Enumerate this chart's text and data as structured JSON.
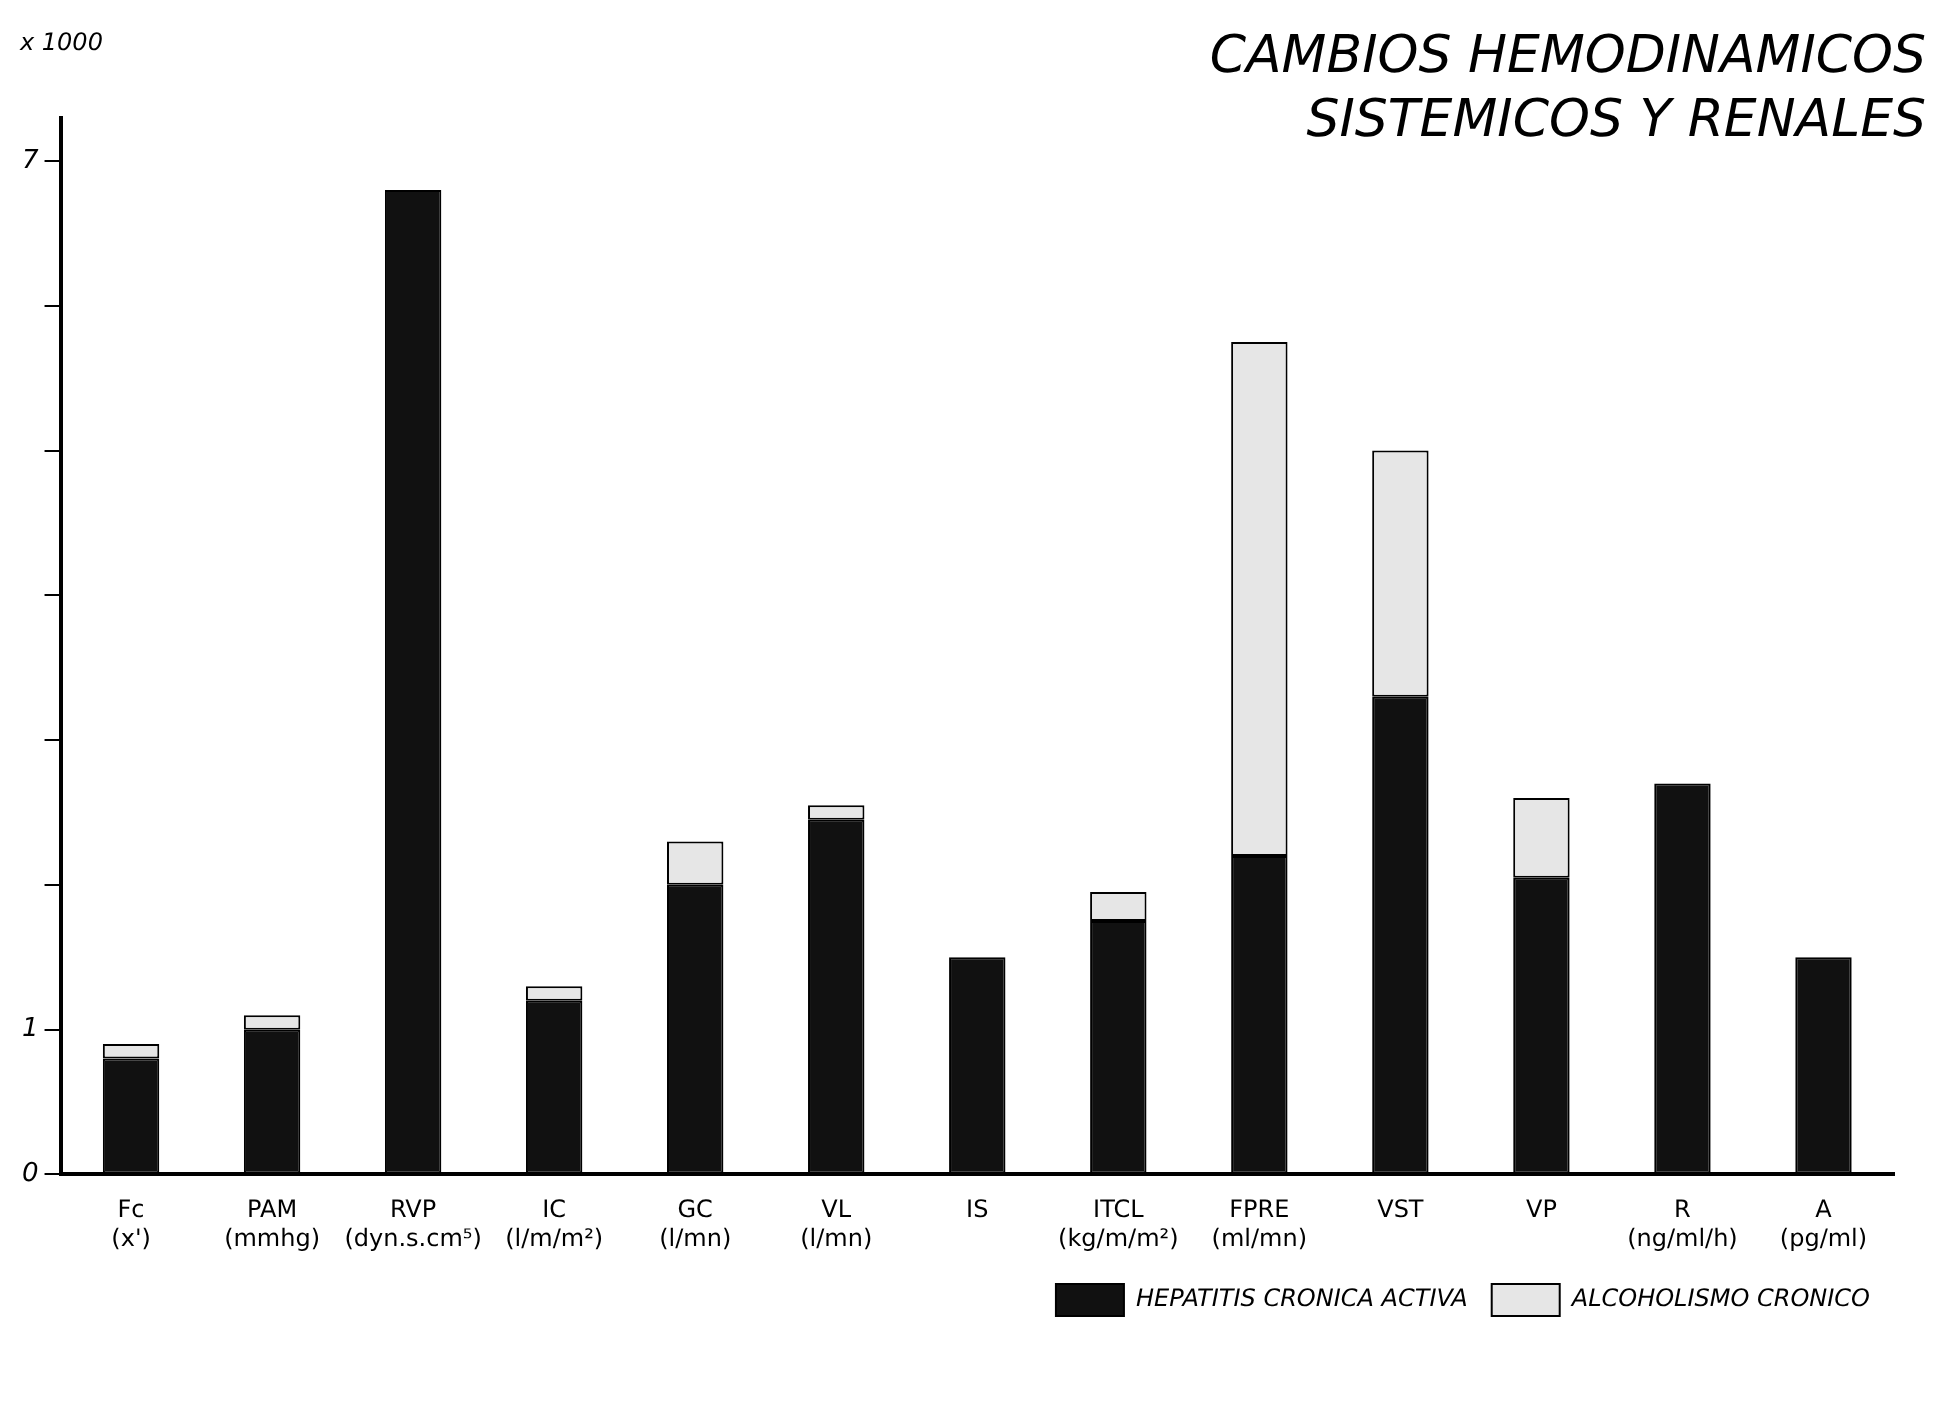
{
  "chart_data": {
    "type": "bar",
    "title": "CAMBIOS HEMODINAMICOS SISTEMICOS Y RENALES",
    "ylabel": "x 1000",
    "categories": [
      "Fc\n(x')",
      "PAM\n(mmhg)",
      "RVP\n(dyn.s.cm⁵)",
      "IC\n(l/m/m²)",
      "GC\n(l/mn)",
      "VL\n(l/mn)",
      "IS",
      "ITCL\n(kg/m/m²)",
      "FPRE\n(ml/mn)",
      "VST",
      "VP",
      "R\n(ng/ml/h)",
      "A\n(pg/ml)"
    ],
    "stacked": true,
    "series": [
      {
        "name": "HEPATITIS CRONICA ACTIVA",
        "color": "#111111",
        "values": [
          0.8,
          1.0,
          6.8,
          1.2,
          2.0,
          2.45,
          1.5,
          1.75,
          2.2,
          3.3,
          2.05,
          2.7,
          1.5
        ]
      },
      {
        "name": "ALCOHOLISMO CRONICO",
        "color": "#e6e6e6",
        "values": [
          0.1,
          0.1,
          null,
          0.1,
          0.3,
          0.1,
          null,
          0.2,
          3.55,
          1.7,
          0.55,
          null,
          null
        ]
      }
    ],
    "ylim": [
      0,
      7.3
    ],
    "yticks": [
      0,
      1,
      {
        "value": 2,
        "label": null
      },
      {
        "value": 3,
        "label": null
      },
      {
        "value": 4,
        "label": null
      },
      {
        "value": 5,
        "label": null
      },
      {
        "value": 6,
        "label": null
      },
      7
    ],
    "grid": false,
    "legend": "bottom right"
  }
}
